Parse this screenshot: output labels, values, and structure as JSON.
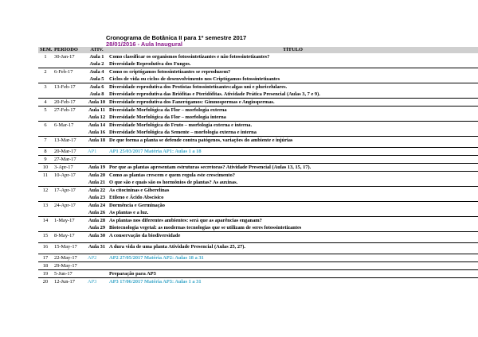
{
  "header": {
    "title": "Cronograma de Botânica II para 1º semestre 2017",
    "subtitle": "28/01/2016 - Aula Inaugural"
  },
  "columns": [
    "SEM.",
    "PERÍODO",
    "ATIV.",
    "TÍTULO"
  ],
  "rows": [
    {
      "sem": "1",
      "periodo": "30-Jan-17",
      "ativ": "Aula 1",
      "titulo": "Como classificar os organismos fotossintetizantes e não fotossintetizantes?",
      "sep": false
    },
    {
      "sem": "",
      "periodo": "",
      "ativ": "Aula 2",
      "titulo": "Diversidade Reprodutiva dos Fungos.",
      "sep": false
    },
    {
      "sem": "2",
      "periodo": "6-Feb-17",
      "ativ": "Aula 4",
      "titulo": "Como os criptógamos fotossintetizantes se reproduzem?",
      "sep": true
    },
    {
      "sem": "",
      "periodo": "",
      "ativ": "Aula 5",
      "titulo": "Ciclos de vida ou ciclos de desenvolvimento nos Criptógamos fotossintetizantes",
      "sep": false
    },
    {
      "sem": "3",
      "periodo": "13-Feb-17",
      "ativ": "Aula 6",
      "titulo": "Diversidade reprodutiva dos Protistas fotossintetizantes:algas uni e pluricelulares.",
      "sep": true
    },
    {
      "sem": "",
      "periodo": "",
      "ativ": "Aula 8",
      "titulo": "Diversidade reprodutiva das Briófitas e Pteridófitas. Atividade Prática Presencial (Aulas 3, 7 e 9).",
      "sep": false
    },
    {
      "sem": "4",
      "periodo": "20-Feb-17",
      "ativ": "Aula 10",
      "titulo": "Diversidade reprodutiva dos Fanerógamos: Gimnospermas e Angiospermas.",
      "sep": true
    },
    {
      "sem": "5",
      "periodo": "27-Feb-17",
      "ativ": "Aula 11",
      "titulo": "Diversidade Morfológica da Flor – morfologia externa",
      "sep": true
    },
    {
      "sem": "",
      "periodo": "",
      "ativ": "Aula 12",
      "titulo": "Diversidade Morfológica da Flor – morfologia interna",
      "sep": false
    },
    {
      "sem": "6",
      "periodo": "6-Mar-17",
      "ativ": "Aula 14",
      "titulo": "Diversidade Morfológica do Fruto – morfologia externa e interna.",
      "sep": true
    },
    {
      "sem": "",
      "periodo": "",
      "ativ": "Aula 16",
      "titulo": "Diversidade Morfológica da Semente – morfologia externa e interna",
      "sep": false
    },
    {
      "sem": "7",
      "periodo": "13-Mar-17",
      "ativ": "Aula 18",
      "titulo": "De que forma a planta se defende contra patógenos, variações do ambiente e injúrias",
      "sep": true
    },
    {
      "spacer": true
    },
    {
      "sem": "8",
      "periodo": "20-Mar-17",
      "ativ": "AP1",
      "titulo": "AP1 25/03/2017  Matéria AP1: Aulas 1 a 18",
      "sep": true,
      "ap": true
    },
    {
      "sem": "9",
      "periodo": "27-Mar-17",
      "ativ": "",
      "titulo": "",
      "sep": true
    },
    {
      "sem": "10",
      "periodo": "3-Apr-17",
      "ativ": "Aula 19",
      "titulo": "Por que as plantas apresentam estruturas secretoras? Atividade Presencial (Aulas 13, 15, 17).",
      "sep": true
    },
    {
      "sem": "11",
      "periodo": "10-Apr-17",
      "ativ": "Aula 20",
      "titulo": "Como as plantas crescem e quem regula este crescimento?",
      "sep": true
    },
    {
      "sem": "",
      "periodo": "",
      "ativ": "Aula 21",
      "titulo": "O que são e quais são os hormônios de plantas? As auxinas.",
      "sep": false
    },
    {
      "sem": "12",
      "periodo": "17-Apr-17",
      "ativ": "Aula 22",
      "titulo": "As citocininas e Giberelinas",
      "sep": true
    },
    {
      "sem": "",
      "periodo": "",
      "ativ": "Aula 23",
      "titulo": "Etileno e Ácido Abscísico",
      "sep": false
    },
    {
      "sem": "13",
      "periodo": "24-Apr-17",
      "ativ": "Aula 24",
      "titulo": "Dormência e Germinação",
      "sep": true
    },
    {
      "sem": "",
      "periodo": "",
      "ativ": "Aula 26",
      "titulo": "As plantas e a luz.",
      "sep": false
    },
    {
      "sem": "14",
      "periodo": "1-May-17",
      "ativ": "Aula 28",
      "titulo": "As plantas nos diferentes ambientes: será que as aparências enganam?",
      "sep": true
    },
    {
      "sem": "",
      "periodo": "",
      "ativ": "Aula 29",
      "titulo": "Biotecnologia vegetal: as modernas tecnologias que se utilizam de seres fotossintetizantes",
      "sep": false
    },
    {
      "sem": "15",
      "periodo": "8-May-17",
      "ativ": "Aula 30",
      "titulo": "A conservação da biodiversidade",
      "sep": true
    },
    {
      "spacer": true
    },
    {
      "sem": "16",
      "periodo": "15-May-17",
      "ativ": "Aula 31",
      "titulo": "A dura vida de uma planta     Atividade Presencial (Aulas 25, 27).",
      "sep": true
    },
    {
      "spacer": true
    },
    {
      "sem": "17",
      "periodo": "22-May-17",
      "ativ": "AP2",
      "titulo": "AP2 27/05/2017  Matéria AP2: Aulas 18 a 31",
      "sep": true,
      "ap": true
    },
    {
      "sem": "18",
      "periodo": "29-May-17",
      "ativ": "",
      "titulo": "",
      "sep": true
    },
    {
      "sem": "19",
      "periodo": "5-Jun-17",
      "ativ": "",
      "titulo": "Preparação para AP3",
      "sep": true
    },
    {
      "sem": "20",
      "periodo": "12-Jun-17",
      "ativ": "AP3",
      "titulo": "AP3 17/06/2017  Matéria AP3: Aulas 1 a 31",
      "sep": true,
      "ap": true
    }
  ]
}
